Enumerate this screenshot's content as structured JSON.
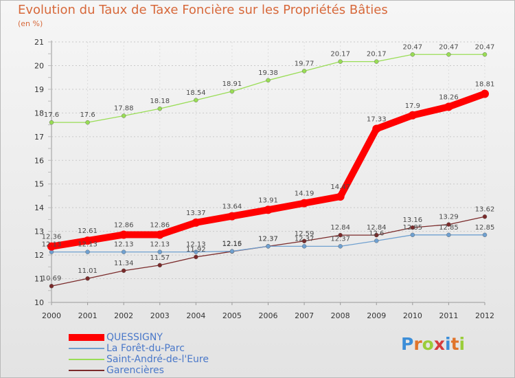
{
  "header": {
    "title": "Evolution du Taux de Taxe Foncière sur les Propriétés Bâties",
    "unit": "(en %)"
  },
  "logo": {
    "text": "Proxiti",
    "colors": [
      "#3c8ed8",
      "#e0742b",
      "#9acd3a",
      "#d63c3c",
      "#3c8ed8",
      "#e0742b",
      "#9acd3a"
    ]
  },
  "chart_data": {
    "type": "line",
    "title": "Evolution du Taux de Taxe Foncière sur les Propriétés Bâties",
    "subtitle": "(en %)",
    "x": [
      "2000",
      "2001",
      "2002",
      "2003",
      "2004",
      "2005",
      "2006",
      "2007",
      "2008",
      "2009",
      "2010",
      "2011",
      "2012"
    ],
    "ylim": [
      10,
      21
    ],
    "yticks": [
      "10",
      "11",
      "12",
      "13",
      "14",
      "15",
      "16",
      "17",
      "18",
      "19",
      "20",
      "21"
    ],
    "grid": "horizontal dashed",
    "legend_position": "bottom-left",
    "series": [
      {
        "name": "QUESSIGNY",
        "color": "#ff0000",
        "values": [
          12.36,
          12.61,
          12.86,
          12.86,
          13.37,
          13.64,
          13.91,
          14.19,
          14.47,
          17.33,
          17.9,
          18.26,
          18.81
        ],
        "labels": [
          "12.36",
          "12.61",
          "12.86",
          "12.86",
          "13.37",
          "13.64",
          "13.91",
          "14.19",
          "14.47",
          "17.33",
          "17.9",
          "18.26",
          "18.81"
        ]
      },
      {
        "name": "La Forêt-du-Parc",
        "color": "#6fa0d0",
        "values": [
          12.13,
          12.13,
          12.13,
          12.13,
          12.13,
          12.16,
          12.37,
          12.37,
          12.37,
          12.6,
          12.85,
          12.85,
          12.85
        ],
        "labels": [
          "12.13",
          "12.13",
          "12.13",
          "12.13",
          "12.13",
          "12.16",
          "12.37",
          "12.37",
          "12.37",
          "12.6",
          "12.85",
          "12.85",
          "12.85"
        ]
      },
      {
        "name": "Saint-André-de-l'Eure",
        "color": "#99dd55",
        "values": [
          17.6,
          17.6,
          17.88,
          18.18,
          18.54,
          18.91,
          19.38,
          19.77,
          20.17,
          20.17,
          20.47,
          20.47,
          20.47
        ],
        "labels": [
          "17.6",
          "17.6",
          "17.88",
          "18.18",
          "18.54",
          "18.91",
          "19.38",
          "19.77",
          "20.17",
          "20.17",
          "20.47",
          "20.47",
          "20.47"
        ]
      },
      {
        "name": "Garencières",
        "color": "#7a2a2a",
        "values": [
          10.69,
          11.01,
          11.34,
          11.57,
          11.92,
          12.15,
          12.37,
          12.59,
          12.84,
          12.84,
          13.16,
          13.29,
          13.62
        ],
        "labels": [
          "10.69",
          "11.01",
          "11.34",
          "11.57",
          "11.92",
          "12.15",
          "12.37",
          "12.59",
          "12.84",
          "12.84",
          "13.16",
          "13.29",
          "13.62"
        ]
      }
    ]
  }
}
